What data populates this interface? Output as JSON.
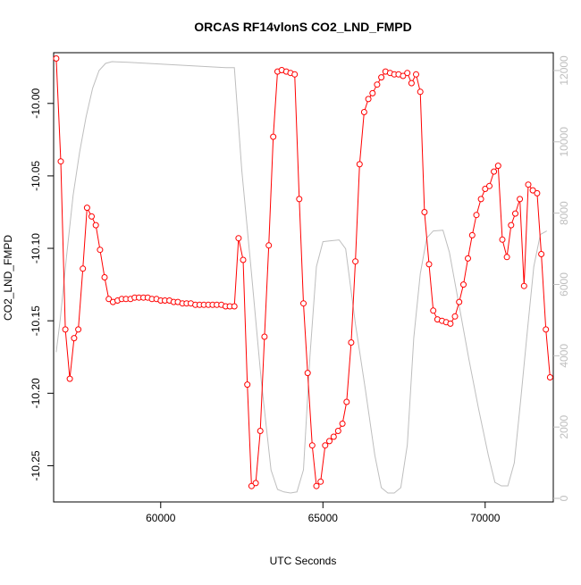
{
  "chart_data": {
    "type": "line",
    "title": "ORCAS RF14vlonS CO2_LND_FMPD",
    "xlabel": "UTC Seconds",
    "ylabel": "CO2_LND_FMPD",
    "xlim": [
      56700,
      72100
    ],
    "ylim": [
      -10.275,
      -9.965
    ],
    "xticks": [
      60000,
      65000,
      70000
    ],
    "xtick_labels": [
      "60000",
      "65000",
      "70000"
    ],
    "yticks": [
      -10.25,
      -10.2,
      -10.15,
      -10.1,
      -10.05,
      -10.0
    ],
    "ytick_labels": [
      "-10.25",
      "-10.20",
      "-10.15",
      "-10.10",
      "-10.05",
      "-10.00"
    ],
    "y2lim": [
      -100,
      12500
    ],
    "y2ticks": [
      0,
      2000,
      4000,
      6000,
      8000,
      10000,
      12000
    ],
    "y2tick_labels": [
      "0",
      "2000",
      "4000",
      "6000",
      "8000",
      "10000",
      "12000"
    ],
    "series": [
      {
        "color": "#ff0000",
        "axis": "left",
        "points": [
          [
            56780,
            -9.969
          ],
          [
            56920,
            -10.04
          ],
          [
            57060,
            -10.156
          ],
          [
            57200,
            -10.19
          ],
          [
            57330,
            -10.162
          ],
          [
            57460,
            -10.156
          ],
          [
            57600,
            -10.114
          ],
          [
            57730,
            -10.072
          ],
          [
            57870,
            -10.078
          ],
          [
            58000,
            -10.084
          ],
          [
            58130,
            -10.101
          ],
          [
            58270,
            -10.12
          ],
          [
            58400,
            -10.135
          ],
          [
            58530,
            -10.137
          ],
          [
            58670,
            -10.136
          ],
          [
            58800,
            -10.135
          ],
          [
            58930,
            -10.135
          ],
          [
            59070,
            -10.135
          ],
          [
            59200,
            -10.134
          ],
          [
            59330,
            -10.134
          ],
          [
            59470,
            -10.134
          ],
          [
            59600,
            -10.134
          ],
          [
            59730,
            -10.135
          ],
          [
            59870,
            -10.135
          ],
          [
            60000,
            -10.136
          ],
          [
            60130,
            -10.136
          ],
          [
            60270,
            -10.136
          ],
          [
            60400,
            -10.137
          ],
          [
            60530,
            -10.137
          ],
          [
            60670,
            -10.138
          ],
          [
            60800,
            -10.138
          ],
          [
            60930,
            -10.138
          ],
          [
            61070,
            -10.139
          ],
          [
            61200,
            -10.139
          ],
          [
            61330,
            -10.139
          ],
          [
            61470,
            -10.139
          ],
          [
            61600,
            -10.139
          ],
          [
            61730,
            -10.139
          ],
          [
            61870,
            -10.139
          ],
          [
            62000,
            -10.14
          ],
          [
            62130,
            -10.14
          ],
          [
            62270,
            -10.14
          ],
          [
            62400,
            -10.093
          ],
          [
            62540,
            -10.108
          ],
          [
            62670,
            -10.194
          ],
          [
            62800,
            -10.264
          ],
          [
            62930,
            -10.262
          ],
          [
            63070,
            -10.226
          ],
          [
            63200,
            -10.161
          ],
          [
            63330,
            -10.098
          ],
          [
            63470,
            -10.023
          ],
          [
            63600,
            -9.978
          ],
          [
            63730,
            -9.977
          ],
          [
            63870,
            -9.978
          ],
          [
            64000,
            -9.979
          ],
          [
            64130,
            -9.98
          ],
          [
            64270,
            -10.066
          ],
          [
            64400,
            -10.138
          ],
          [
            64530,
            -10.186
          ],
          [
            64670,
            -10.236
          ],
          [
            64800,
            -10.264
          ],
          [
            64930,
            -10.261
          ],
          [
            65070,
            -10.236
          ],
          [
            65200,
            -10.233
          ],
          [
            65330,
            -10.23
          ],
          [
            65470,
            -10.226
          ],
          [
            65600,
            -10.221
          ],
          [
            65730,
            -10.206
          ],
          [
            65870,
            -10.165
          ],
          [
            66000,
            -10.109
          ],
          [
            66130,
            -10.042
          ],
          [
            66270,
            -10.006
          ],
          [
            66400,
            -9.997
          ],
          [
            66530,
            -9.993
          ],
          [
            66670,
            -9.987
          ],
          [
            66800,
            -9.982
          ],
          [
            66930,
            -9.978
          ],
          [
            67070,
            -9.979
          ],
          [
            67200,
            -9.98
          ],
          [
            67330,
            -9.98
          ],
          [
            67470,
            -9.981
          ],
          [
            67600,
            -9.979
          ],
          [
            67730,
            -9.986
          ],
          [
            67870,
            -9.98
          ],
          [
            68000,
            -9.992
          ],
          [
            68130,
            -10.075
          ],
          [
            68270,
            -10.111
          ],
          [
            68400,
            -10.143
          ],
          [
            68530,
            -10.149
          ],
          [
            68670,
            -10.15
          ],
          [
            68800,
            -10.151
          ],
          [
            68930,
            -10.152
          ],
          [
            69070,
            -10.147
          ],
          [
            69200,
            -10.137
          ],
          [
            69330,
            -10.125
          ],
          [
            69470,
            -10.107
          ],
          [
            69600,
            -10.091
          ],
          [
            69730,
            -10.077
          ],
          [
            69870,
            -10.066
          ],
          [
            70000,
            -10.059
          ],
          [
            70130,
            -10.057
          ],
          [
            70270,
            -10.047
          ],
          [
            70400,
            -10.043
          ],
          [
            70530,
            -10.094
          ],
          [
            70670,
            -10.106
          ],
          [
            70800,
            -10.084
          ],
          [
            70930,
            -10.076
          ],
          [
            71070,
            -10.066
          ],
          [
            71200,
            -10.126
          ],
          [
            71330,
            -10.056
          ],
          [
            71470,
            -10.06
          ],
          [
            71600,
            -10.062
          ],
          [
            71730,
            -10.104
          ],
          [
            71870,
            -10.156
          ],
          [
            72000,
            -10.189
          ],
          [
            72130,
            -10.21
          ],
          [
            72270,
            -10.212
          ],
          [
            72400,
            -10.214
          ]
        ]
      },
      {
        "color": "#bebebe",
        "axis": "right",
        "points": [
          [
            56780,
            4100
          ],
          [
            56900,
            5000
          ],
          [
            57100,
            6800
          ],
          [
            57300,
            8500
          ],
          [
            57500,
            9700
          ],
          [
            57700,
            10700
          ],
          [
            57900,
            11500
          ],
          [
            58100,
            12000
          ],
          [
            58300,
            12200
          ],
          [
            58500,
            12250
          ],
          [
            59000,
            12230
          ],
          [
            60000,
            12180
          ],
          [
            61000,
            12130
          ],
          [
            62000,
            12080
          ],
          [
            62270,
            12080
          ],
          [
            62500,
            9200
          ],
          [
            62800,
            6300
          ],
          [
            63100,
            3300
          ],
          [
            63400,
            800
          ],
          [
            63600,
            250
          ],
          [
            63800,
            180
          ],
          [
            64000,
            150
          ],
          [
            64200,
            180
          ],
          [
            64400,
            800
          ],
          [
            64600,
            4000
          ],
          [
            64800,
            6500
          ],
          [
            65000,
            7200
          ],
          [
            65200,
            7220
          ],
          [
            65500,
            7250
          ],
          [
            65700,
            7000
          ],
          [
            66000,
            4900
          ],
          [
            66300,
            3100
          ],
          [
            66600,
            1200
          ],
          [
            66800,
            300
          ],
          [
            67000,
            150
          ],
          [
            67200,
            150
          ],
          [
            67400,
            300
          ],
          [
            67600,
            1500
          ],
          [
            67800,
            4500
          ],
          [
            68000,
            6300
          ],
          [
            68200,
            7300
          ],
          [
            68400,
            7500
          ],
          [
            68700,
            7520
          ],
          [
            68900,
            6900
          ],
          [
            69200,
            5400
          ],
          [
            69500,
            3900
          ],
          [
            69800,
            2500
          ],
          [
            70100,
            1200
          ],
          [
            70300,
            450
          ],
          [
            70500,
            350
          ],
          [
            70700,
            350
          ],
          [
            70900,
            1000
          ],
          [
            71100,
            2800
          ],
          [
            71300,
            4700
          ],
          [
            71500,
            6500
          ],
          [
            71700,
            7400
          ],
          [
            71900,
            7500
          ]
        ]
      }
    ],
    "right_axis_color": "#bebebe",
    "marker": "open-circle",
    "grid": false,
    "legend": "none"
  }
}
